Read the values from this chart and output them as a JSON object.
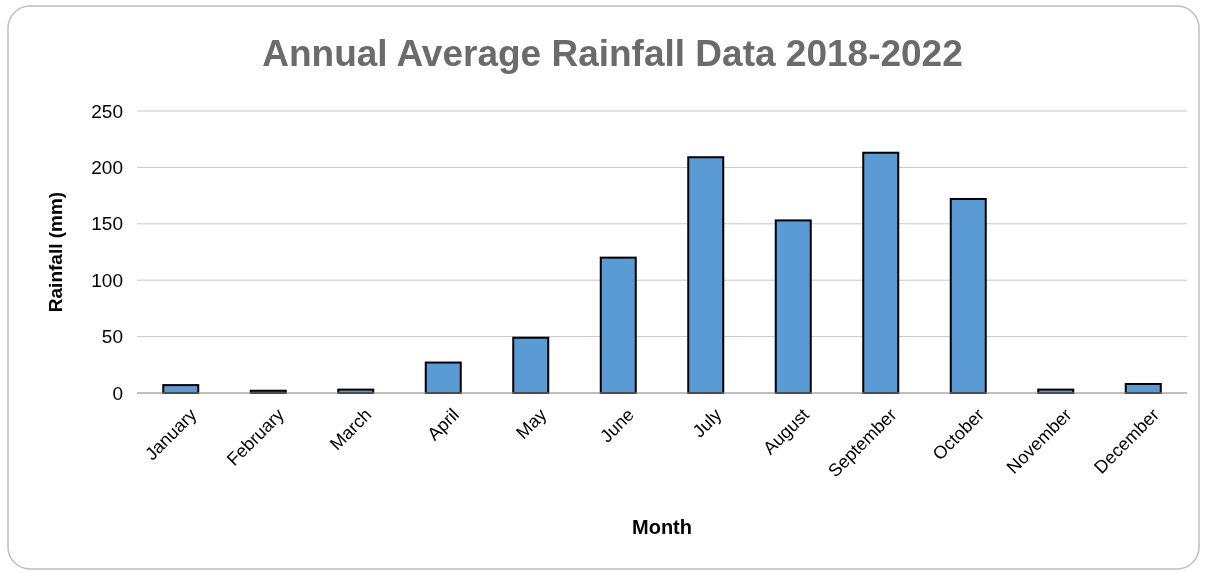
{
  "chart_data": {
    "type": "bar",
    "title": "Annual Average Rainfall Data 2018-2022",
    "xlabel": "Month",
    "ylabel": "Rainfall (mm)",
    "categories": [
      "January",
      "February",
      "March",
      "April",
      "May",
      "June",
      "July",
      "August",
      "September",
      "October",
      "November",
      "December"
    ],
    "values": [
      7,
      2,
      3,
      27,
      49,
      120,
      209,
      153,
      213,
      172,
      3,
      8
    ],
    "color": "#5b9bd5",
    "ylim": [
      0,
      250
    ],
    "yticks": [
      0,
      50,
      100,
      150,
      200,
      250
    ],
    "grid": "y"
  }
}
